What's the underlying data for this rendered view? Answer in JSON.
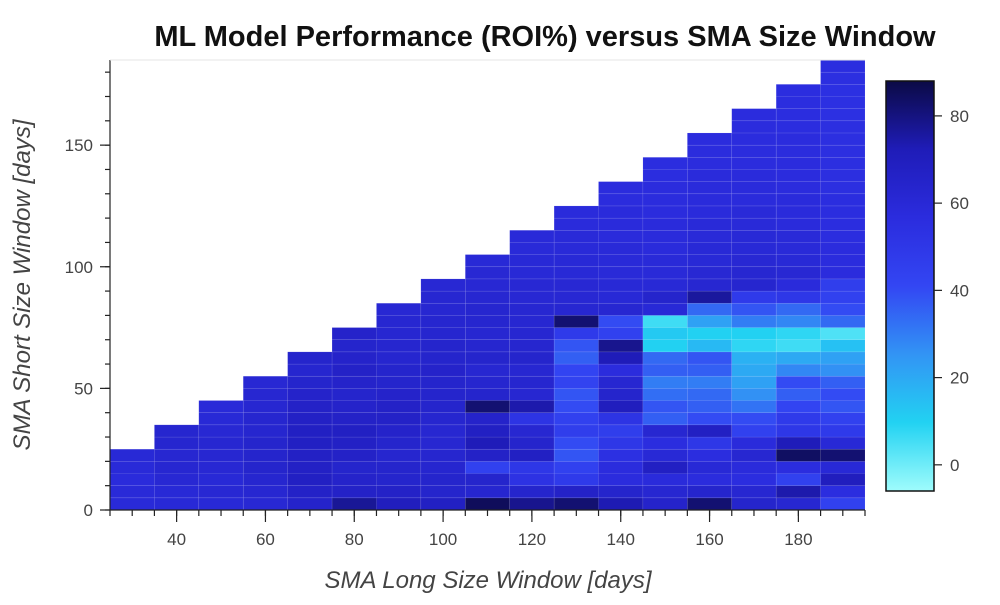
{
  "chart_data": {
    "type": "heatmap",
    "title": "ML Model Performance (ROI%) versus SMA Size Window",
    "xlabel": "SMA Long Size Window [days]",
    "ylabel": "SMA Short Size Window [days]",
    "xlim": [
      25,
      195
    ],
    "ylim": [
      0,
      185
    ],
    "x_ticks": [
      40,
      60,
      80,
      100,
      120,
      140,
      160,
      180
    ],
    "y_ticks": [
      0,
      50,
      100,
      150
    ],
    "x_minor_step": 5,
    "y_minor_step": 10,
    "x_centers": [
      30,
      40,
      50,
      60,
      70,
      80,
      90,
      100,
      110,
      120,
      130,
      140,
      150,
      160,
      170,
      180,
      190
    ],
    "y_step": 5,
    "colorbar": {
      "min": -6,
      "max": 88,
      "ticks": [
        0,
        20,
        40,
        60,
        80
      ]
    },
    "colorscale": [
      "#9FFCFC",
      "#22D2F2",
      "#3294F4",
      "#3346F3",
      "#2B2CDE",
      "#1F1CB8",
      "#0B0A45"
    ],
    "grid": false,
    "legend": "colorbar-right",
    "columns": [
      {
        "x": 30,
        "y_max": 25,
        "values": [
          59,
          59,
          58,
          59,
          60
        ]
      },
      {
        "x": 40,
        "y_max": 35,
        "values": [
          60,
          60,
          61,
          62,
          62,
          63,
          63
        ]
      },
      {
        "x": 50,
        "y_max": 45,
        "values": [
          60,
          61,
          60,
          61,
          62,
          62,
          61,
          60,
          59
        ]
      },
      {
        "x": 60,
        "y_max": 55,
        "values": [
          61,
          62,
          63,
          64,
          64,
          64,
          63,
          63,
          62,
          62,
          61
        ]
      },
      {
        "x": 70,
        "y_max": 65,
        "values": [
          65,
          66,
          68,
          67,
          67,
          68,
          68,
          67,
          66,
          65,
          64,
          63,
          64
        ]
      },
      {
        "x": 80,
        "y_max": 75,
        "values": [
          77,
          66,
          65,
          64,
          66,
          67,
          68,
          66,
          65,
          64,
          65,
          66,
          65,
          64,
          65
        ]
      },
      {
        "x": 90,
        "y_max": 85,
        "values": [
          70,
          66,
          64,
          64,
          63,
          64,
          65,
          66,
          66,
          65,
          64,
          64,
          63,
          63,
          62,
          62,
          61
        ]
      },
      {
        "x": 100,
        "y_max": 95,
        "values": [
          68,
          64,
          64,
          63,
          63,
          62,
          62,
          63,
          64,
          64,
          64,
          65,
          64,
          64,
          63,
          63,
          62,
          62,
          61
        ]
      },
      {
        "x": 110,
        "y_max": 105,
        "values": [
          85,
          63,
          64,
          44,
          66,
          72,
          68,
          65,
          82,
          64,
          63,
          62,
          64,
          63,
          62,
          63,
          63,
          62,
          61,
          61,
          60
        ]
      },
      {
        "x": 120,
        "y_max": 115,
        "values": [
          78,
          64,
          53,
          50,
          68,
          64,
          62,
          52,
          74,
          62,
          63,
          62,
          64,
          63,
          62,
          62,
          62,
          61,
          61,
          60,
          60,
          59,
          59
        ]
      },
      {
        "x": 130,
        "y_max": 125,
        "values": [
          82,
          66,
          48,
          44,
          38,
          40,
          46,
          44,
          40,
          38,
          43,
          42,
          36,
          38,
          48,
          82,
          62,
          61,
          61,
          60,
          60,
          59,
          59,
          58,
          58
        ]
      },
      {
        "x": 140,
        "y_max": 135,
        "values": [
          73,
          64,
          57,
          57,
          54,
          50,
          46,
          52,
          70,
          64,
          62,
          57,
          72,
          78,
          44,
          40,
          62,
          60,
          60,
          59,
          59,
          59,
          58,
          58,
          58,
          57,
          57
        ]
      },
      {
        "x": 150,
        "y_max": 145,
        "values": [
          65,
          62,
          58,
          68,
          60,
          56,
          62,
          36,
          38,
          33,
          30,
          36,
          34,
          10,
          12,
          6,
          60,
          64,
          60,
          59,
          59,
          58,
          58,
          58,
          57,
          57,
          57,
          56,
          56
        ]
      },
      {
        "x": 160,
        "y_max": 155,
        "values": [
          82,
          64,
          57,
          60,
          56,
          50,
          68,
          40,
          36,
          34,
          30,
          36,
          38,
          16,
          10,
          22,
          34,
          76,
          62,
          61,
          60,
          60,
          59,
          59,
          58,
          58,
          58,
          58,
          57,
          57,
          57
        ]
      },
      {
        "x": 170,
        "y_max": 165,
        "values": [
          64,
          62,
          56,
          58,
          62,
          58,
          44,
          40,
          32,
          26,
          22,
          20,
          18,
          8,
          10,
          30,
          38,
          48,
          63,
          62,
          61,
          60,
          60,
          59,
          59,
          58,
          58,
          58,
          57,
          57,
          57,
          57,
          57
        ]
      },
      {
        "x": 180,
        "y_max": 175,
        "values": [
          62,
          74,
          44,
          56,
          84,
          72,
          50,
          48,
          42,
          36,
          40,
          28,
          20,
          6,
          8,
          28,
          34,
          50,
          58,
          61,
          60,
          59,
          59,
          58,
          58,
          58,
          57,
          57,
          57,
          57,
          57,
          56,
          56,
          56,
          56
        ]
      },
      {
        "x": 190,
        "y_max": 185,
        "values": [
          44,
          56,
          70,
          60,
          82,
          60,
          48,
          44,
          38,
          40,
          36,
          26,
          22,
          14,
          4,
          34,
          40,
          44,
          46,
          57,
          57,
          57,
          56,
          56,
          56,
          56,
          55,
          55,
          55,
          55,
          55,
          55,
          54,
          54,
          54,
          55,
          56
        ]
      }
    ]
  }
}
